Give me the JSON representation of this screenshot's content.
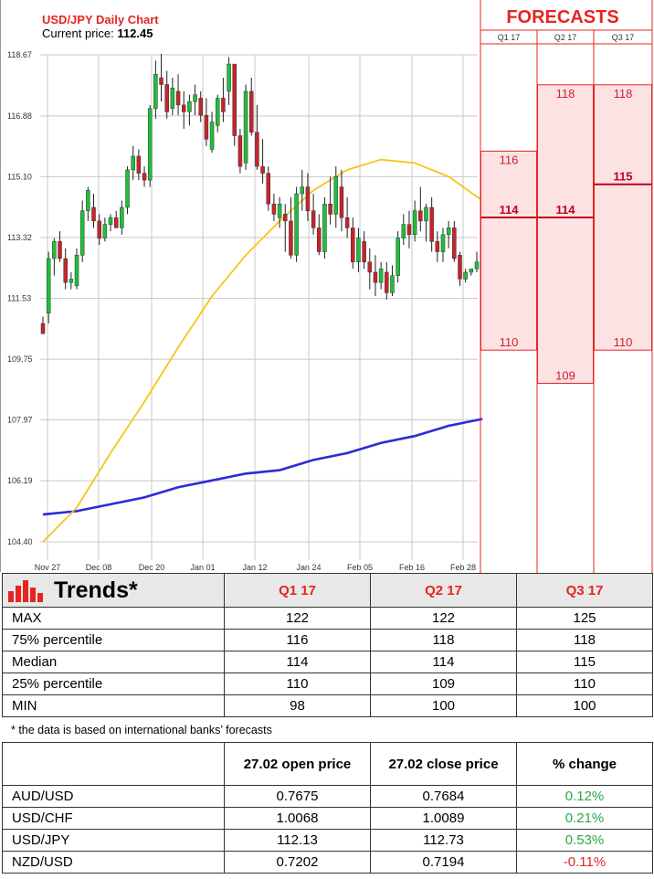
{
  "chart_header": {
    "title": "USD/JPY Daily Chart",
    "price_label": "Current price:",
    "price_value": "112.45"
  },
  "chart_data": [
    {
      "type": "candlestick",
      "title": "USD/JPY Daily Chart",
      "yticks": [
        "118.67",
        "116.88",
        "115.10",
        "113.32",
        "111.53",
        "109.75",
        "107.97",
        "106.19",
        "104.40"
      ],
      "xticks": [
        "Nov 27",
        "Dec 08",
        "Dec 20",
        "Jan 01",
        "Jan 12",
        "Jan 24",
        "Feb 05",
        "Feb 16",
        "Feb 28"
      ],
      "ylim": [
        104.4,
        118.67
      ],
      "grid": true,
      "colors": {
        "up": "#1fbf3a",
        "down": "#c8232b",
        "ma_short": "#f5c518",
        "ma_long": "#2b2bd9"
      },
      "candles": [
        [
          110.8,
          111.0,
          110.5,
          110.5
        ],
        [
          111.1,
          112.9,
          110.8,
          112.7
        ],
        [
          112.7,
          113.3,
          112.2,
          113.2
        ],
        [
          113.2,
          113.5,
          112.6,
          112.7
        ],
        [
          112.7,
          113.0,
          111.8,
          112.0
        ],
        [
          112.0,
          112.3,
          111.8,
          112.1
        ],
        [
          111.9,
          113.0,
          111.8,
          112.8
        ],
        [
          112.8,
          114.4,
          112.6,
          114.1
        ],
        [
          114.1,
          114.8,
          113.8,
          114.7
        ],
        [
          114.2,
          114.6,
          113.6,
          113.8
        ],
        [
          113.8,
          114.0,
          113.1,
          113.3
        ],
        [
          113.3,
          113.9,
          113.2,
          113.7
        ],
        [
          113.7,
          114.0,
          113.5,
          113.9
        ],
        [
          113.9,
          114.1,
          113.6,
          113.6
        ],
        [
          113.6,
          114.4,
          113.4,
          114.2
        ],
        [
          114.2,
          115.4,
          114.0,
          115.3
        ],
        [
          115.3,
          116.0,
          115.0,
          115.7
        ],
        [
          115.7,
          115.9,
          115.0,
          115.2
        ],
        [
          115.2,
          115.4,
          114.8,
          115.0
        ],
        [
          115.0,
          117.2,
          114.8,
          117.1
        ],
        [
          117.1,
          118.5,
          116.8,
          118.1
        ],
        [
          118.0,
          118.7,
          117.3,
          117.8
        ],
        [
          117.8,
          118.2,
          116.8,
          117.0
        ],
        [
          117.1,
          118.0,
          116.9,
          117.7
        ],
        [
          117.6,
          118.1,
          116.9,
          117.2
        ],
        [
          117.2,
          117.6,
          116.5,
          117.0
        ],
        [
          117.0,
          117.5,
          116.6,
          117.3
        ],
        [
          117.3,
          117.8,
          116.9,
          117.5
        ],
        [
          117.4,
          117.6,
          116.7,
          116.9
        ],
        [
          116.9,
          117.4,
          116.0,
          116.2
        ],
        [
          115.9,
          117.0,
          115.8,
          116.7
        ],
        [
          116.6,
          117.5,
          116.4,
          117.4
        ],
        [
          117.4,
          118.0,
          116.7,
          117.0
        ],
        [
          117.6,
          118.6,
          117.2,
          118.4
        ],
        [
          118.4,
          118.4,
          116.0,
          116.3
        ],
        [
          116.3,
          116.5,
          115.2,
          115.4
        ],
        [
          115.5,
          117.8,
          115.3,
          117.6
        ],
        [
          117.6,
          118.0,
          116.3,
          116.4
        ],
        [
          116.4,
          117.2,
          115.3,
          115.4
        ],
        [
          115.4,
          116.2,
          114.9,
          115.2
        ],
        [
          115.2,
          115.4,
          114.1,
          114.3
        ],
        [
          114.3,
          114.6,
          113.8,
          114.0
        ],
        [
          113.9,
          114.5,
          113.6,
          114.3
        ],
        [
          114.0,
          114.3,
          112.9,
          113.8
        ],
        [
          113.8,
          114.5,
          112.7,
          112.8
        ],
        [
          112.8,
          114.8,
          112.6,
          114.6
        ],
        [
          114.6,
          115.3,
          114.1,
          114.8
        ],
        [
          114.8,
          115.2,
          113.8,
          114.1
        ],
        [
          114.1,
          114.6,
          113.4,
          113.6
        ],
        [
          113.6,
          114.0,
          112.8,
          112.9
        ],
        [
          112.9,
          114.5,
          112.7,
          114.3
        ],
        [
          114.3,
          115.1,
          113.7,
          114.0
        ],
        [
          114.0,
          115.4,
          113.6,
          115.1
        ],
        [
          114.8,
          115.3,
          113.5,
          113.9
        ],
        [
          113.9,
          114.5,
          113.3,
          113.6
        ],
        [
          113.6,
          113.9,
          112.4,
          112.6
        ],
        [
          112.6,
          113.6,
          112.3,
          113.3
        ],
        [
          113.2,
          113.5,
          112.4,
          112.6
        ],
        [
          112.6,
          113.0,
          111.8,
          112.3
        ],
        [
          112.3,
          112.8,
          111.6,
          112.0
        ],
        [
          112.0,
          112.6,
          111.8,
          112.4
        ],
        [
          112.3,
          112.6,
          111.5,
          111.7
        ],
        [
          111.7,
          112.5,
          111.6,
          112.2
        ],
        [
          112.2,
          113.5,
          112.0,
          113.3
        ],
        [
          113.3,
          114.0,
          113.1,
          113.7
        ],
        [
          113.7,
          114.1,
          113.0,
          113.4
        ],
        [
          113.4,
          114.4,
          113.2,
          114.1
        ],
        [
          114.1,
          114.8,
          113.5,
          113.8
        ],
        [
          113.8,
          114.3,
          113.2,
          114.2
        ],
        [
          114.2,
          114.5,
          112.9,
          113.2
        ],
        [
          113.2,
          113.5,
          112.6,
          112.9
        ],
        [
          112.9,
          113.6,
          112.6,
          113.4
        ],
        [
          113.4,
          113.8,
          113.0,
          113.6
        ],
        [
          113.6,
          113.8,
          112.6,
          112.7
        ],
        [
          112.8,
          112.9,
          111.9,
          112.1
        ],
        [
          112.1,
          112.4,
          112.0,
          112.3
        ],
        [
          112.3,
          112.4,
          112.2,
          112.4
        ],
        [
          112.4,
          112.9,
          112.3,
          112.6
        ]
      ],
      "ma_short": [
        [
          0,
          104.4
        ],
        [
          6,
          105.4
        ],
        [
          12,
          107.0
        ],
        [
          18,
          108.5
        ],
        [
          24,
          110.1
        ],
        [
          30,
          111.6
        ],
        [
          36,
          112.8
        ],
        [
          42,
          113.8
        ],
        [
          48,
          114.7
        ],
        [
          54,
          115.3
        ],
        [
          60,
          115.6
        ],
        [
          66,
          115.5
        ],
        [
          72,
          115.1
        ],
        [
          78,
          114.4
        ]
      ],
      "ma_long": [
        [
          0,
          105.2
        ],
        [
          6,
          105.3
        ],
        [
          12,
          105.5
        ],
        [
          18,
          105.7
        ],
        [
          24,
          106.0
        ],
        [
          30,
          106.2
        ],
        [
          36,
          106.4
        ],
        [
          42,
          106.5
        ],
        [
          48,
          106.8
        ],
        [
          54,
          107.0
        ],
        [
          60,
          107.3
        ],
        [
          66,
          107.5
        ],
        [
          72,
          107.8
        ],
        [
          78,
          108.0
        ]
      ]
    },
    {
      "type": "range",
      "title": "FORECASTS",
      "categories": [
        "Q1 17",
        "Q2 17",
        "Q3 17"
      ],
      "series": [
        {
          "name": "75% percentile",
          "values": [
            116,
            118,
            118
          ]
        },
        {
          "name": "Median",
          "values": [
            114,
            114,
            115
          ]
        },
        {
          "name": "25% percentile",
          "values": [
            110,
            109,
            110
          ]
        }
      ],
      "colors": {
        "band": "#fde2e4",
        "border": "#e52521",
        "median": "#c0001b"
      }
    }
  ],
  "trends": {
    "title": "Trends*",
    "icon": "bar-chart-icon",
    "columns": [
      "Q1 17",
      "Q2 17",
      "Q3 17"
    ],
    "rows": [
      {
        "label": "MAX",
        "values": [
          "122",
          "122",
          "125"
        ]
      },
      {
        "label": "75% percentile",
        "values": [
          "116",
          "118",
          "118"
        ]
      },
      {
        "label": "Median",
        "values": [
          "114",
          "114",
          "115"
        ]
      },
      {
        "label": "25% percentile",
        "values": [
          "110",
          "109",
          "110"
        ]
      },
      {
        "label": "MIN",
        "values": [
          "98",
          "100",
          "100"
        ]
      }
    ]
  },
  "footnote": "* the data is based on international banks’ forecasts",
  "fx_table": {
    "columns": [
      "",
      "27.02 open price",
      "27.02 close price",
      "% change"
    ],
    "rows": [
      {
        "pair": "AUD/USD",
        "open": "0.7675",
        "close": "0.7684",
        "change": "0.12%",
        "sign": "pos"
      },
      {
        "pair": "USD/CHF",
        "open": "1.0068",
        "close": "1.0089",
        "change": "0.21%",
        "sign": "pos"
      },
      {
        "pair": "USD/JPY",
        "open": "112.13",
        "close": "112.73",
        "change": "0.53%",
        "sign": "pos"
      },
      {
        "pair": "NZD/USD",
        "open": "0.7202",
        "close": "0.7194",
        "change": "-0.11%",
        "sign": "neg"
      }
    ]
  }
}
